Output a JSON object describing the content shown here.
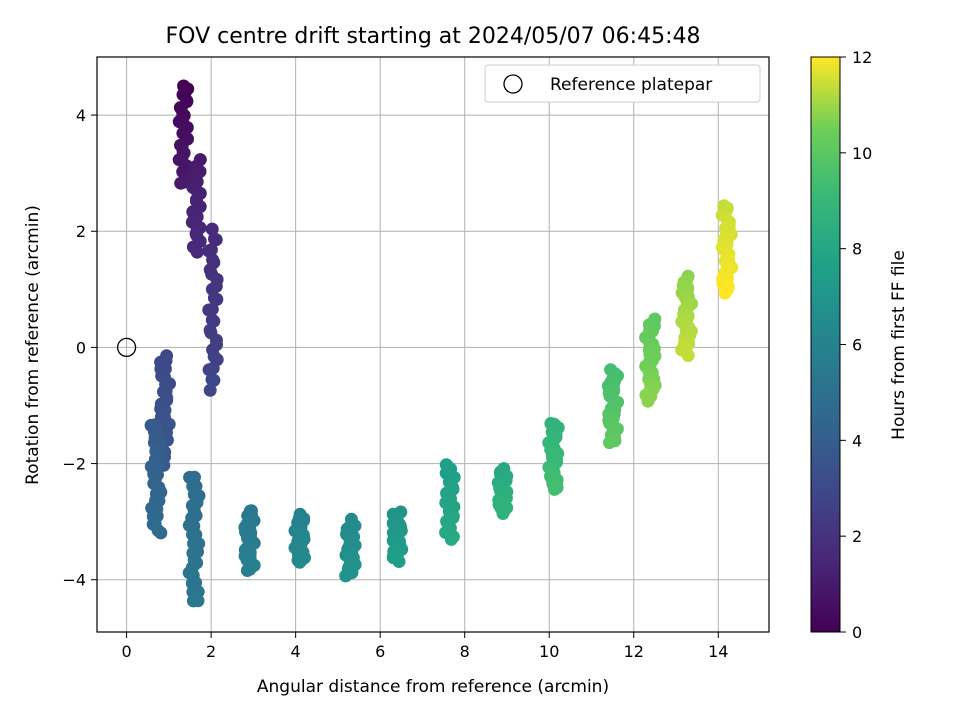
{
  "chart_data": {
    "type": "scatter",
    "title": "FOV centre drift starting at 2024/05/07 06:45:48",
    "xlabel": "Angular distance from reference (arcmin)",
    "ylabel": "Rotation from reference (arcmin)",
    "xlim": [
      -0.7,
      15.2
    ],
    "ylim": [
      -4.9,
      5.0
    ],
    "x_ticks": [
      0,
      2,
      4,
      6,
      8,
      10,
      12,
      14
    ],
    "x_tick_labels": [
      "0",
      "2",
      "4",
      "6",
      "8",
      "10",
      "12",
      "14"
    ],
    "y_ticks": [
      -4,
      -2,
      0,
      2,
      4
    ],
    "y_tick_labels": [
      "−4",
      "−2",
      "0",
      "2",
      "4"
    ],
    "grid": true,
    "legend": {
      "placement": "top-right",
      "entries": [
        {
          "label": "Reference platepar",
          "marker": "open-circle",
          "color": "#000000"
        }
      ]
    },
    "colorbar": {
      "label": "Hours from first FF file",
      "colormap": "viridis",
      "range": [
        0,
        12
      ],
      "ticks": [
        0,
        2,
        4,
        6,
        8,
        10,
        12
      ],
      "tick_labels": [
        "0",
        "2",
        "4",
        "6",
        "8",
        "10",
        "12"
      ]
    },
    "reference_point": {
      "x": 0,
      "y": 0
    },
    "clusters": [
      {
        "x": 1.35,
        "y_min": 2.8,
        "y_max": 4.5,
        "hours_start": 0.0,
        "hours_end": 1.0
      },
      {
        "x": 1.65,
        "y_min": 1.65,
        "y_max": 3.2,
        "hours_start": 1.0,
        "hours_end": 1.6
      },
      {
        "x": 2.05,
        "y_min": -0.7,
        "y_max": 2.0,
        "hours_start": 1.6,
        "hours_end": 2.9
      },
      {
        "x": 0.9,
        "y_min": -2.0,
        "y_max": -0.15,
        "hours_start": 2.9,
        "hours_end": 3.8
      },
      {
        "x": 0.7,
        "y_min": -3.2,
        "y_max": -1.3,
        "hours_start": 3.8,
        "hours_end": 4.7
      },
      {
        "x": 1.6,
        "y_min": -4.4,
        "y_max": -2.2,
        "hours_start": 4.7,
        "hours_end": 5.4
      },
      {
        "x": 2.9,
        "y_min": -3.85,
        "y_max": -2.8,
        "hours_start": 5.4,
        "hours_end": 5.9
      },
      {
        "x": 4.1,
        "y_min": -3.7,
        "y_max": -2.9,
        "hours_start": 5.9,
        "hours_end": 6.4
      },
      {
        "x": 5.3,
        "y_min": -3.9,
        "y_max": -3.0,
        "hours_start": 6.4,
        "hours_end": 6.9
      },
      {
        "x": 6.4,
        "y_min": -3.65,
        "y_max": -2.85,
        "hours_start": 6.9,
        "hours_end": 7.5
      },
      {
        "x": 7.65,
        "y_min": -3.3,
        "y_max": -2.0,
        "hours_start": 7.5,
        "hours_end": 8.1
      },
      {
        "x": 8.9,
        "y_min": -2.85,
        "y_max": -2.1,
        "hours_start": 8.1,
        "hours_end": 8.7
      },
      {
        "x": 10.1,
        "y_min": -2.45,
        "y_max": -1.3,
        "hours_start": 8.7,
        "hours_end": 9.4
      },
      {
        "x": 11.5,
        "y_min": -1.65,
        "y_max": -0.4,
        "hours_start": 9.4,
        "hours_end": 10.1
      },
      {
        "x": 12.4,
        "y_min": -0.9,
        "y_max": 0.45,
        "hours_start": 10.1,
        "hours_end": 10.8
      },
      {
        "x": 13.25,
        "y_min": -0.1,
        "y_max": 1.2,
        "hours_start": 10.8,
        "hours_end": 11.4
      },
      {
        "x": 14.2,
        "y_min": 0.95,
        "y_max": 2.45,
        "hours_start": 11.4,
        "hours_end": 12.0
      }
    ]
  }
}
